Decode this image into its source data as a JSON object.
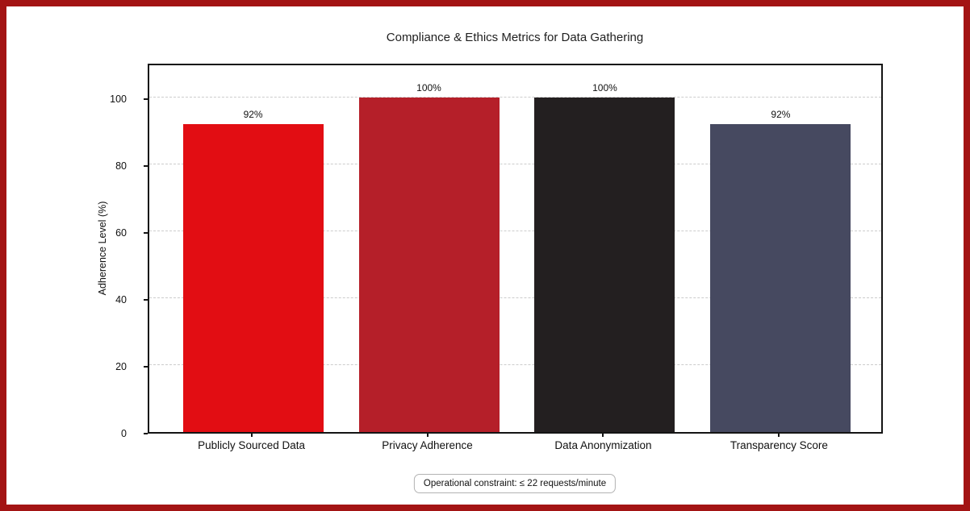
{
  "frame": {
    "border_color": "#a31414",
    "background": "#ffffff"
  },
  "chart_data": {
    "type": "bar",
    "title": "Compliance & Ethics Metrics for Data Gathering",
    "categories": [
      "Publicly Sourced Data",
      "Privacy Adherence",
      "Data Anonymization",
      "Transparency Score"
    ],
    "values": [
      92,
      100,
      100,
      92
    ],
    "value_labels": [
      "92%",
      "100%",
      "100%",
      "92%"
    ],
    "bar_colors": [
      "#e20d13",
      "#b51f29",
      "#231f20",
      "#464960"
    ],
    "xlabel": "",
    "ylabel": "Adherence Level (%)",
    "ylim": [
      0,
      110.6
    ],
    "yticks": [
      0,
      20,
      40,
      60,
      80,
      100
    ],
    "grid": "horizontal dashed gridlines at y ticks",
    "legend": "none",
    "annotation": "Operational constraint: ≤ 22 requests/minute"
  }
}
